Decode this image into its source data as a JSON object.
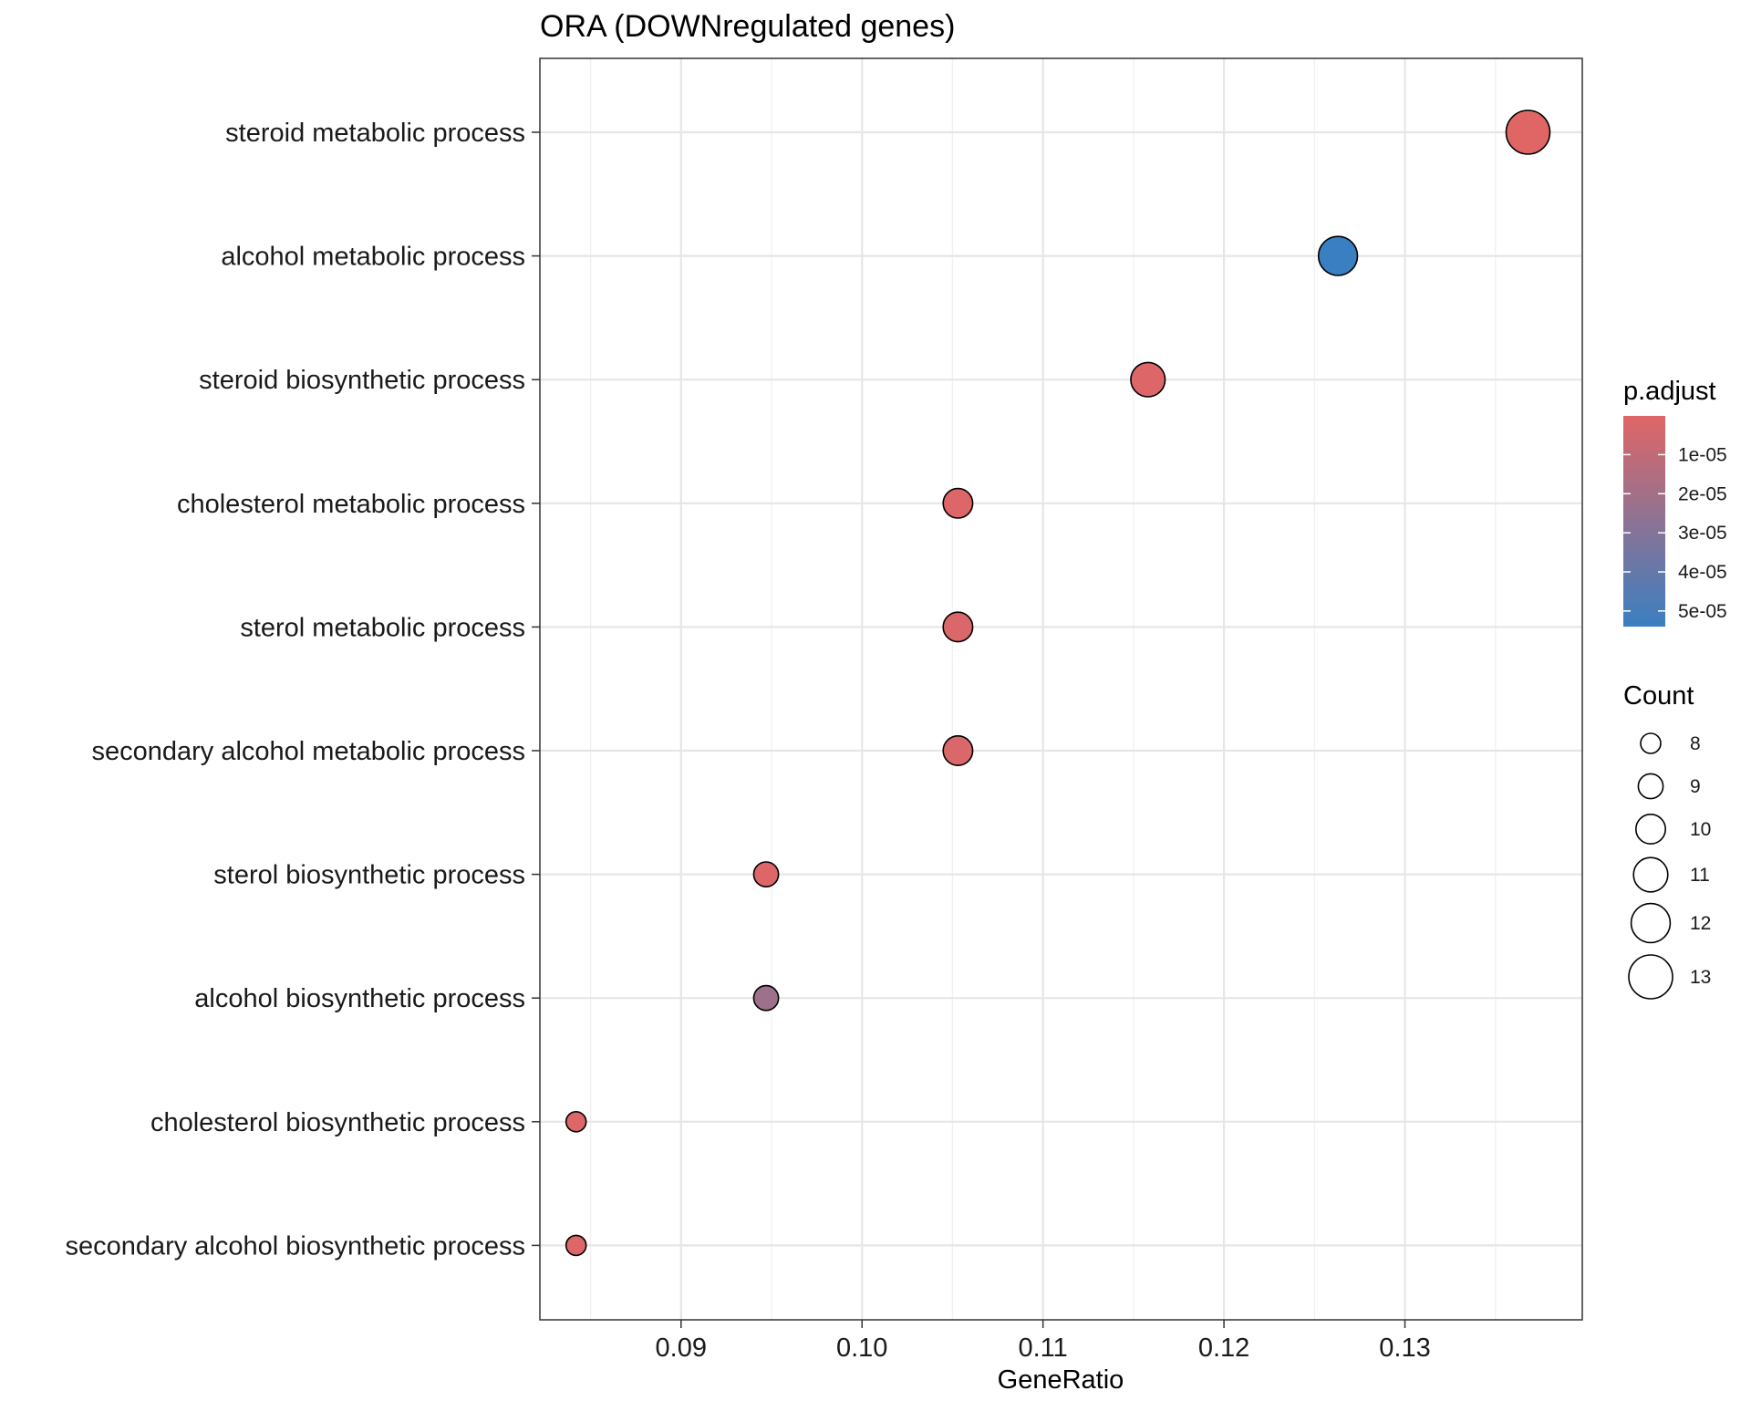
{
  "chart_data": {
    "type": "scatter",
    "title": "ORA (DOWNregulated genes)",
    "xlabel": "GeneRatio",
    "ylabel": "",
    "xlim": [
      0.0822,
      0.1398
    ],
    "xticks": [
      0.09,
      0.1,
      0.11,
      0.12,
      0.13
    ],
    "xtick_labels": [
      "0.09",
      "0.10",
      "0.11",
      "0.12",
      "0.13"
    ],
    "grid": true,
    "colors": {
      "low": "#e06666",
      "high": "#3a7fc1"
    },
    "categories": [
      "steroid metabolic process",
      "alcohol metabolic process",
      "steroid biosynthetic process",
      "cholesterol metabolic process",
      "sterol metabolic process",
      "secondary alcohol metabolic process",
      "sterol biosynthetic process",
      "alcohol biosynthetic process",
      "cholesterol biosynthetic process",
      "secondary alcohol biosynthetic process"
    ],
    "points": [
      {
        "term": "steroid metabolic process",
        "gene_ratio": 0.1368,
        "count": 13,
        "p_adjust": 1e-07
      },
      {
        "term": "alcohol metabolic process",
        "gene_ratio": 0.1263,
        "count": 12,
        "p_adjust": 5.4e-05
      },
      {
        "term": "steroid biosynthetic process",
        "gene_ratio": 0.1158,
        "count": 11,
        "p_adjust": 1e-06
      },
      {
        "term": "cholesterol metabolic process",
        "gene_ratio": 0.1053,
        "count": 10,
        "p_adjust": 1e-06
      },
      {
        "term": "sterol metabolic process",
        "gene_ratio": 0.1053,
        "count": 10,
        "p_adjust": 2e-06
      },
      {
        "term": "secondary alcohol metabolic process",
        "gene_ratio": 0.1053,
        "count": 10,
        "p_adjust": 2e-06
      },
      {
        "term": "sterol biosynthetic process",
        "gene_ratio": 0.0947,
        "count": 9,
        "p_adjust": 1e-06
      },
      {
        "term": "alcohol biosynthetic process",
        "gene_ratio": 0.0947,
        "count": 9,
        "p_adjust": 2.2e-05
      },
      {
        "term": "cholesterol biosynthetic process",
        "gene_ratio": 0.0842,
        "count": 8,
        "p_adjust": 1e-06
      },
      {
        "term": "secondary alcohol biosynthetic process",
        "gene_ratio": 0.0842,
        "count": 8,
        "p_adjust": 1e-06
      }
    ],
    "legend_color": {
      "title": "p.adjust",
      "range": [
        1e-07,
        5.4e-05
      ],
      "ticks": [
        1e-05,
        2e-05,
        3e-05,
        4e-05,
        5e-05
      ],
      "tick_labels": [
        "1e-05",
        "2e-05",
        "3e-05",
        "4e-05",
        "5e-05"
      ]
    },
    "legend_size": {
      "title": "Count",
      "values": [
        8,
        9,
        10,
        11,
        12,
        13
      ],
      "labels": [
        "8",
        "9",
        "10",
        "11",
        "12",
        "13"
      ]
    }
  }
}
